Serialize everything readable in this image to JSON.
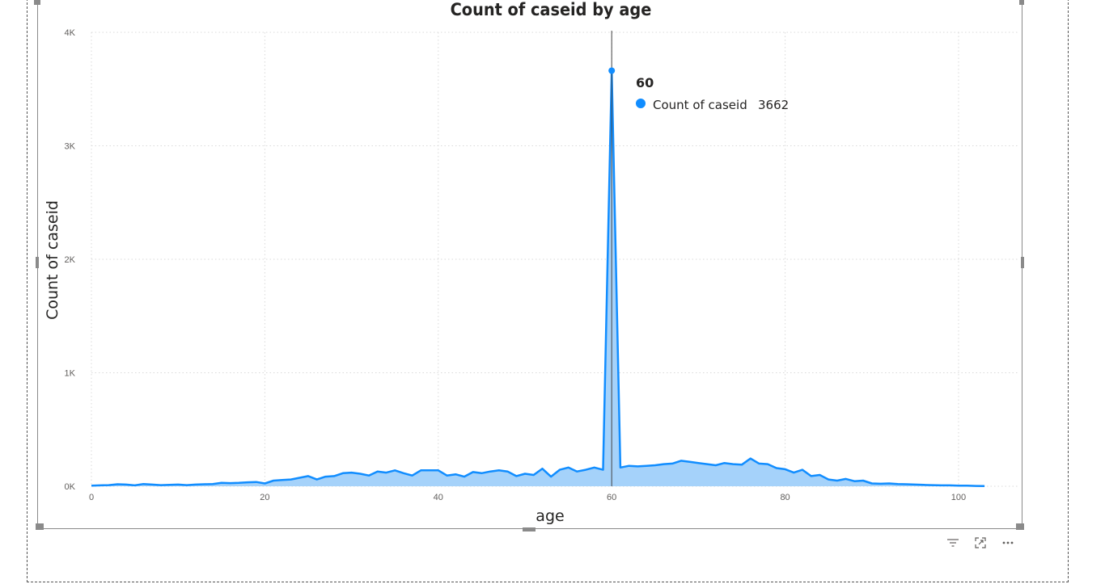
{
  "visual": {
    "toolbar": [
      {
        "name": "filter-icon"
      },
      {
        "name": "focus-mode-icon"
      },
      {
        "name": "more-options-icon"
      }
    ]
  },
  "colors": {
    "line": "#118DFF",
    "area": "#A5D2FA",
    "grid": "#d9d9d9",
    "crosshair": "#444444"
  },
  "chart_data": {
    "type": "area",
    "title": "Count of caseid by age",
    "xlabel": "age",
    "ylabel": "Count of caseid",
    "series_name": "Count of caseid",
    "xlim": [
      0,
      107
    ],
    "ylim": [
      0,
      4000
    ],
    "xticks": [
      0,
      20,
      40,
      60,
      80,
      100
    ],
    "yticks": [
      {
        "value": 0,
        "label": "0K"
      },
      {
        "value": 1000,
        "label": "1K"
      },
      {
        "value": 2000,
        "label": "2K"
      },
      {
        "value": 3000,
        "label": "3K"
      },
      {
        "value": 4000,
        "label": "4K"
      }
    ],
    "grid": true,
    "x": [
      0,
      1,
      2,
      3,
      4,
      5,
      6,
      7,
      8,
      9,
      10,
      11,
      12,
      13,
      14,
      15,
      16,
      17,
      18,
      19,
      20,
      21,
      22,
      23,
      24,
      25,
      26,
      27,
      28,
      29,
      30,
      31,
      32,
      33,
      34,
      35,
      36,
      37,
      38,
      39,
      40,
      41,
      42,
      43,
      44,
      45,
      46,
      47,
      48,
      49,
      50,
      51,
      52,
      53,
      54,
      55,
      56,
      57,
      58,
      59,
      60,
      61,
      62,
      63,
      64,
      65,
      66,
      67,
      68,
      69,
      70,
      71,
      72,
      73,
      74,
      75,
      76,
      77,
      78,
      79,
      80,
      81,
      82,
      83,
      84,
      85,
      86,
      87,
      88,
      89,
      90,
      91,
      92,
      93,
      94,
      95,
      96,
      97,
      98,
      99,
      100,
      101,
      102,
      103
    ],
    "values": [
      5,
      8,
      10,
      18,
      15,
      8,
      20,
      15,
      10,
      12,
      15,
      10,
      15,
      18,
      20,
      30,
      28,
      30,
      35,
      38,
      25,
      50,
      55,
      60,
      75,
      90,
      60,
      85,
      90,
      115,
      120,
      110,
      95,
      130,
      120,
      140,
      115,
      95,
      140,
      140,
      140,
      95,
      105,
      85,
      125,
      115,
      130,
      140,
      130,
      90,
      110,
      100,
      155,
      85,
      145,
      165,
      130,
      145,
      165,
      145,
      3662,
      165,
      180,
      175,
      180,
      185,
      195,
      200,
      225,
      215,
      205,
      195,
      185,
      205,
      195,
      190,
      245,
      200,
      195,
      160,
      150,
      120,
      145,
      90,
      100,
      60,
      50,
      65,
      45,
      50,
      25,
      22,
      25,
      20,
      18,
      15,
      12,
      10,
      8,
      8,
      5,
      5,
      3,
      2
    ],
    "tooltip": {
      "x_label": "60",
      "series": "Count of caseid",
      "value": "3662"
    }
  }
}
